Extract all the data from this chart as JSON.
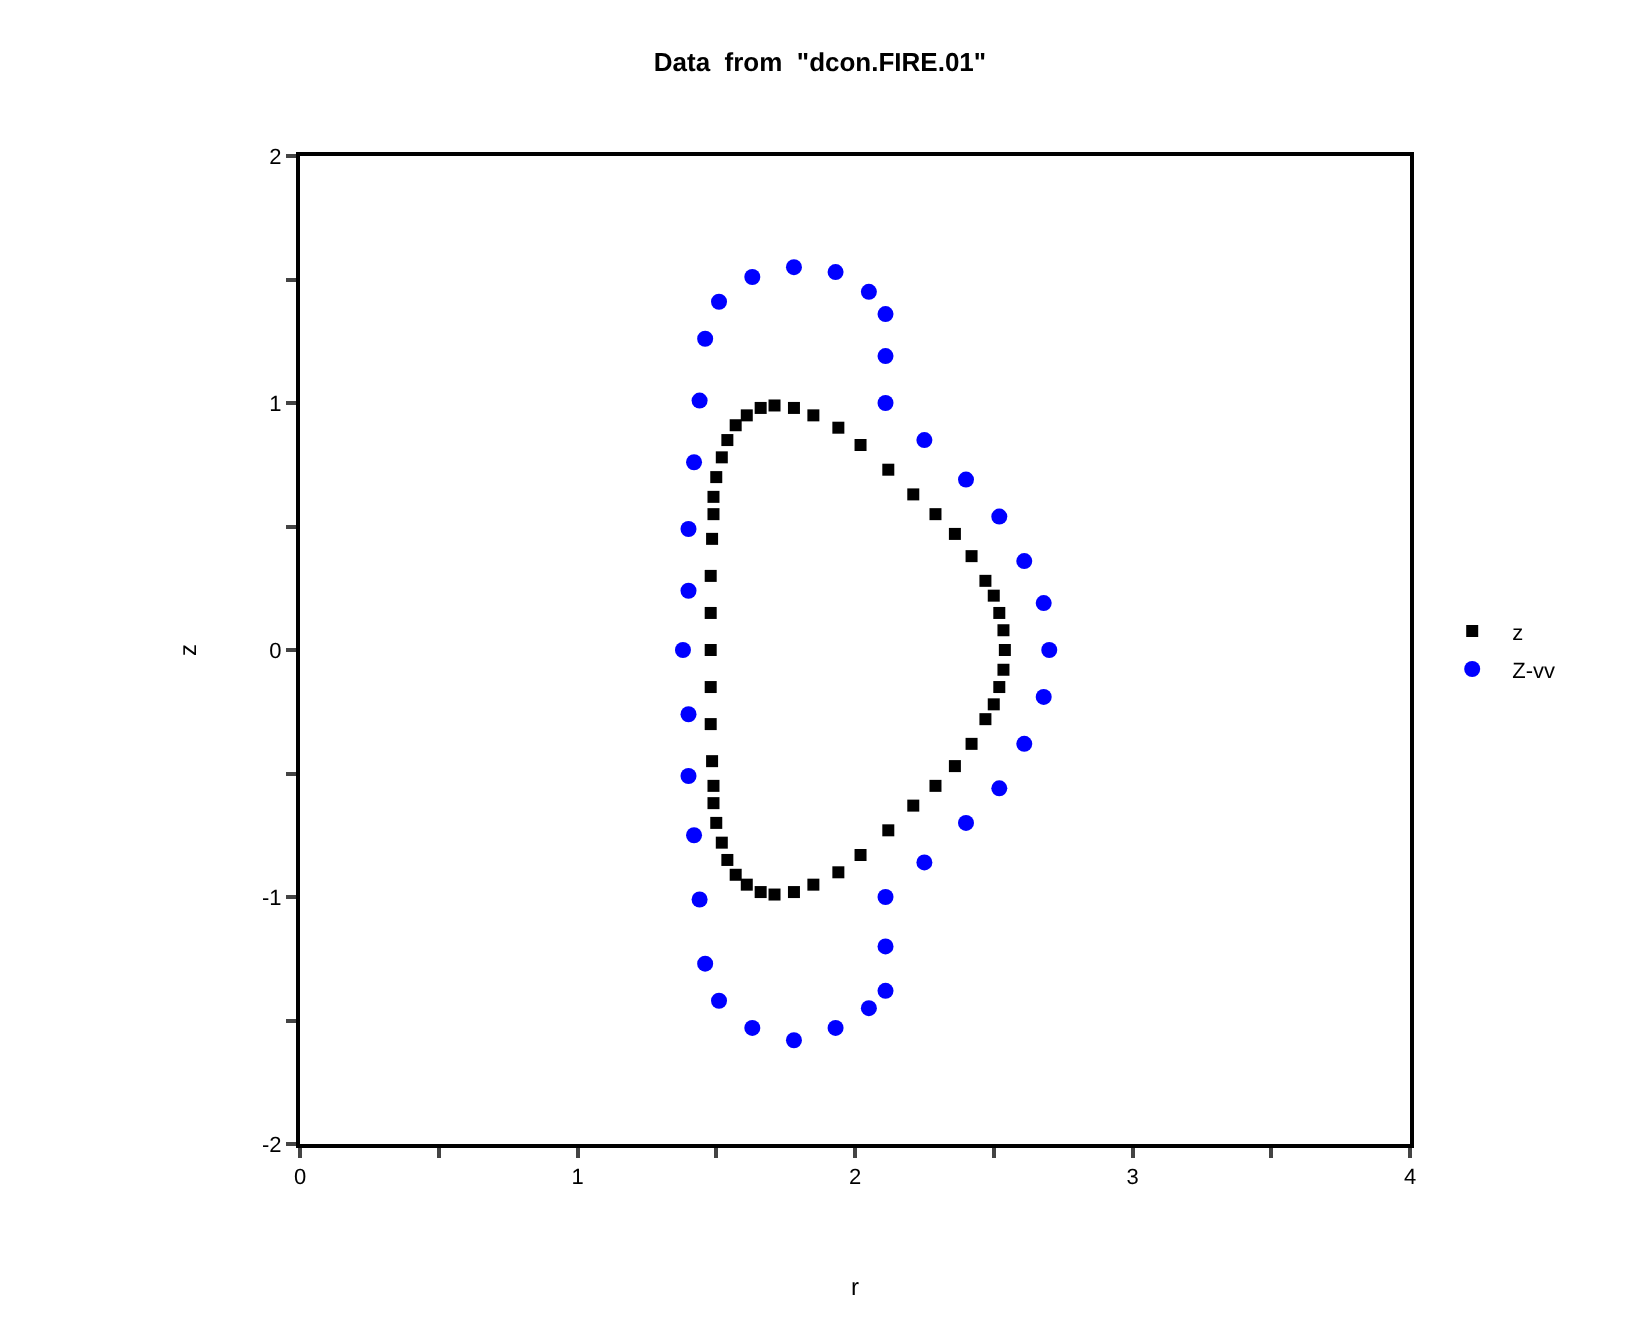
{
  "chart_data": {
    "type": "scatter",
    "title": "Data  from  \"dcon.FIRE.01\"",
    "xlabel": "r",
    "ylabel": "z",
    "xlim": [
      0,
      4
    ],
    "ylim": [
      -2,
      2
    ],
    "xticks": [
      0,
      {
        "value": 0.5,
        "label": null
      },
      1,
      {
        "value": 1.5,
        "label": null
      },
      2,
      {
        "value": 2.5,
        "label": null
      },
      3,
      {
        "value": 3.5,
        "label": null
      },
      4
    ],
    "yticks": [
      -2,
      {
        "value": -1.5,
        "label": null
      },
      -1,
      {
        "value": -0.5,
        "label": null
      },
      0,
      {
        "value": 0.5,
        "label": null
      },
      1,
      {
        "value": 1.5,
        "label": null
      },
      2
    ],
    "legend": "right",
    "series": [
      {
        "name": "z",
        "color": "#000000",
        "marker": "square",
        "x": [
          2.54,
          2.535,
          2.52,
          2.5,
          2.47,
          2.42,
          2.36,
          2.29,
          2.21,
          2.12,
          2.02,
          1.94,
          1.85,
          1.78,
          1.71,
          1.66,
          1.61,
          1.57,
          1.54,
          1.52,
          1.5,
          1.49,
          1.49,
          1.485,
          1.48,
          1.48,
          1.48,
          1.48,
          1.48,
          1.485,
          1.49,
          1.49,
          1.5,
          1.52,
          1.54,
          1.57,
          1.61,
          1.66,
          1.71,
          1.78,
          1.85,
          1.94,
          2.02,
          2.12,
          2.21,
          2.29,
          2.36,
          2.42,
          2.47,
          2.5,
          2.52,
          2.535
        ],
        "values": [
          0,
          0.08,
          0.15,
          0.22,
          0.28,
          0.38,
          0.47,
          0.55,
          0.63,
          0.73,
          0.83,
          0.9,
          0.95,
          0.98,
          0.99,
          0.98,
          0.95,
          0.91,
          0.85,
          0.78,
          0.7,
          0.62,
          0.55,
          0.45,
          0.3,
          0.15,
          0,
          -0.15,
          -0.3,
          -0.45,
          -0.55,
          -0.62,
          -0.7,
          -0.78,
          -0.85,
          -0.91,
          -0.95,
          -0.98,
          -0.99,
          -0.98,
          -0.95,
          -0.9,
          -0.83,
          -0.73,
          -0.63,
          -0.55,
          -0.47,
          -0.38,
          -0.28,
          -0.22,
          -0.15,
          -0.08
        ]
      },
      {
        "name": "Z-vv",
        "color": "#0000ff",
        "marker": "circle",
        "x": [
          2.7,
          2.68,
          2.61,
          2.52,
          2.4,
          2.25,
          2.11,
          2.11,
          2.11,
          2.05,
          1.93,
          1.78,
          1.63,
          1.51,
          1.46,
          1.44,
          1.42,
          1.4,
          1.4,
          1.38,
          1.4,
          1.4,
          1.42,
          1.44,
          1.46,
          1.51,
          1.63,
          1.78,
          1.93,
          2.05,
          2.11,
          2.11,
          2.11,
          2.25,
          2.4,
          2.52,
          2.61,
          2.68
        ],
        "values": [
          0,
          0.19,
          0.36,
          0.54,
          0.69,
          0.85,
          1.0,
          1.19,
          1.36,
          1.45,
          1.53,
          1.55,
          1.51,
          1.41,
          1.26,
          1.01,
          0.76,
          0.49,
          0.24,
          0,
          -0.26,
          -0.51,
          -0.75,
          -1.01,
          -1.27,
          -1.42,
          -1.53,
          -1.58,
          -1.53,
          -1.45,
          -1.38,
          -1.2,
          -1.0,
          -0.86,
          -0.7,
          -0.56,
          -0.38,
          -0.19
        ]
      }
    ]
  }
}
